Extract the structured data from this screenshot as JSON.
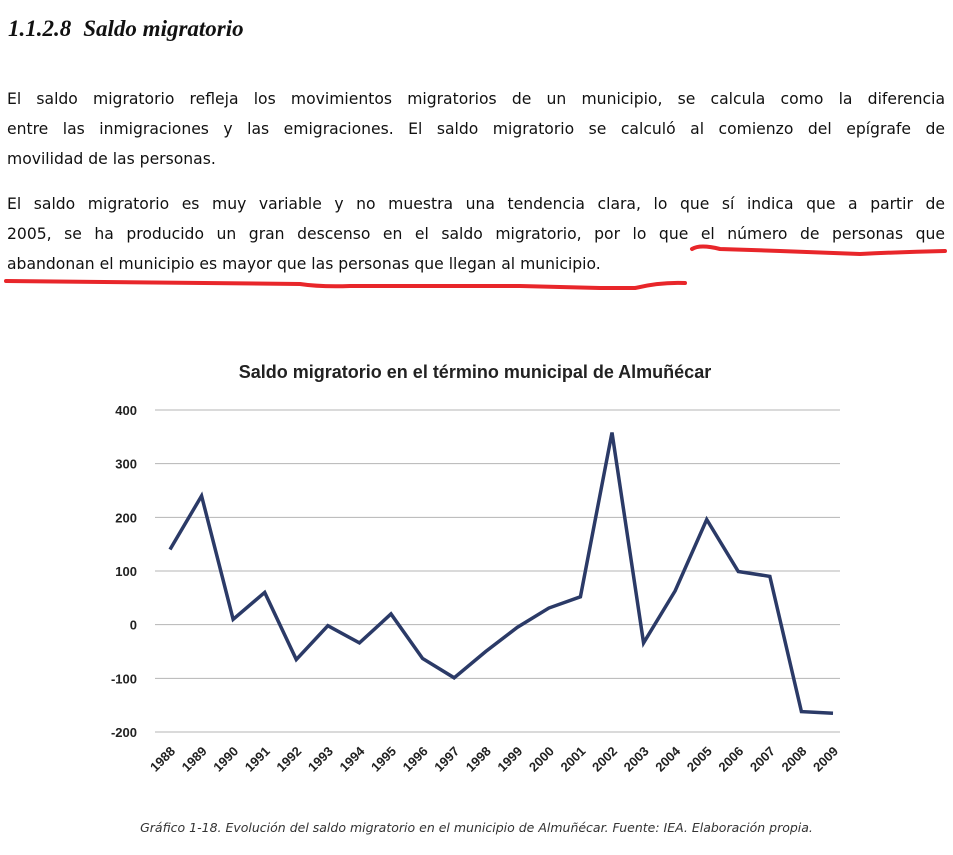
{
  "heading": {
    "number": "1.1.2.8",
    "title": "Saldo migratorio"
  },
  "paragraphs": [
    {
      "lines": [
        "El saldo migratorio refleja los movimientos migratorios de un municipio, se calcula como la diferencia",
        "entre las inmigraciones y las emigraciones. El saldo migratorio se calculó al comienzo del epígrafe de",
        "movilidad de las personas."
      ]
    },
    {
      "lines": [
        "El saldo migratorio es muy variable y no muestra una tendencia clara, lo que sí indica que a partir de",
        "2005, se ha producido un gran descenso en el saldo migratorio, por lo que el número de personas que",
        "abandonan el municipio es mayor que las personas que llegan al municipio."
      ]
    }
  ],
  "annotation_color": "#e8262a",
  "chart_data": {
    "type": "line",
    "title": "Saldo migratorio en el término municipal de Almuñécar",
    "xlabel": "",
    "ylabel": "",
    "categories": [
      "1988",
      "1989",
      "1990",
      "1991",
      "1992",
      "1993",
      "1994",
      "1995",
      "1996",
      "1997",
      "1998",
      "1999",
      "2000",
      "2001",
      "2002",
      "2003",
      "2004",
      "2005",
      "2006",
      "2007",
      "2008",
      "2009"
    ],
    "values": [
      140,
      240,
      10,
      60,
      -65,
      -2,
      -34,
      20,
      -63,
      -99,
      -50,
      -5,
      31,
      52,
      358,
      -34,
      63,
      196,
      99,
      90,
      -162,
      -165
    ],
    "ylim": [
      -200,
      400
    ],
    "yticks": [
      "400",
      "300",
      "200",
      "100",
      "0",
      "-100",
      "-200"
    ],
    "grid": true,
    "legend": "none",
    "line_color": "#2b3a67"
  },
  "caption": "Gráfico 1-18. Evolución del saldo migratorio en el municipio de Almuñécar. Fuente: IEA. Elaboración propia."
}
